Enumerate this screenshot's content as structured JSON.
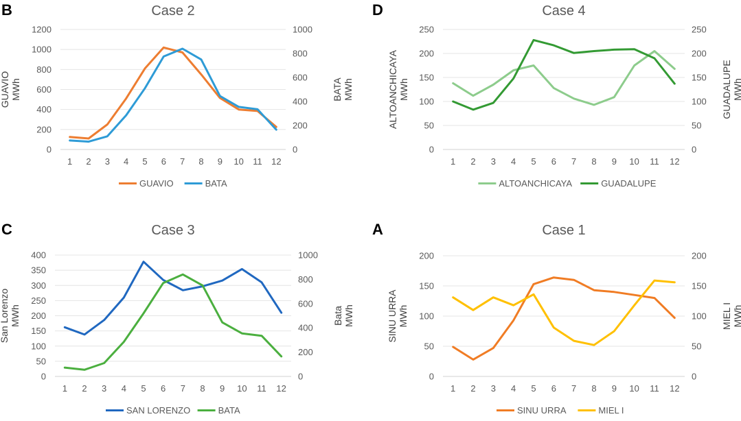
{
  "chart_data": [
    {
      "type": "line",
      "panel_letter": "B",
      "title": "Case 2",
      "categories": [
        "1",
        "2",
        "3",
        "4",
        "5",
        "6",
        "7",
        "8",
        "9",
        "10",
        "11",
        "12"
      ],
      "left_axis": {
        "label_line1": "GUAVIO",
        "label_line2": "MWh",
        "ylim": [
          0,
          1200
        ],
        "ticks": [
          "0",
          "200",
          "400",
          "600",
          "800",
          "1000",
          "1200"
        ]
      },
      "right_axis": {
        "label_line1": "BATA",
        "label_line2": "MWh",
        "ylim": [
          0,
          1000
        ],
        "ticks": [
          "0",
          "200",
          "400",
          "600",
          "800",
          "1000"
        ]
      },
      "series": [
        {
          "name": "GUAVIO",
          "axis": "left",
          "color": "#ED7D31",
          "values": [
            125,
            110,
            250,
            510,
            810,
            1020,
            970,
            750,
            515,
            400,
            385,
            225
          ]
        },
        {
          "name": "BATA",
          "axis": "right",
          "color": "#2E9BD6",
          "values": [
            75,
            65,
            110,
            285,
            510,
            775,
            840,
            750,
            445,
            355,
            335,
            165
          ]
        }
      ]
    },
    {
      "type": "line",
      "panel_letter": "D",
      "title": "Case 4",
      "categories": [
        "1",
        "2",
        "3",
        "4",
        "5",
        "6",
        "7",
        "8",
        "9",
        "10",
        "11",
        "12"
      ],
      "left_axis": {
        "label_line1": "ALTOANCHICAYA",
        "label_line2": "MWh",
        "ylim": [
          0,
          250
        ],
        "ticks": [
          "0",
          "50",
          "100",
          "150",
          "200",
          "250"
        ]
      },
      "right_axis": {
        "label_line1": "GUADALUPE",
        "label_line2": "MWh",
        "ylim": [
          0,
          250
        ],
        "ticks": [
          "0",
          "50",
          "100",
          "150",
          "200",
          "250"
        ]
      },
      "series": [
        {
          "name": "ALTOANCHICAYA",
          "axis": "left",
          "color": "#8DCC8C",
          "values": [
            138,
            112,
            135,
            165,
            175,
            128,
            106,
            93,
            109,
            175,
            205,
            168
          ]
        },
        {
          "name": "GUADALUPE",
          "axis": "right",
          "color": "#339A33",
          "values": [
            100,
            83,
            97,
            148,
            228,
            217,
            201,
            205,
            208,
            209,
            190,
            137
          ]
        }
      ]
    },
    {
      "type": "line",
      "panel_letter": "C",
      "title": "Case 3",
      "categories": [
        "1",
        "2",
        "3",
        "4",
        "5",
        "6",
        "7",
        "8",
        "9",
        "10",
        "11",
        "12"
      ],
      "left_axis": {
        "label_line1": "San Lorenzo",
        "label_line2": "MWh",
        "ylim": [
          0,
          400
        ],
        "ticks": [
          "0",
          "50",
          "100",
          "150",
          "200",
          "250",
          "300",
          "350",
          "400"
        ]
      },
      "right_axis": {
        "label_line1": "Bata",
        "label_line2": "MWh",
        "ylim": [
          0,
          1000
        ],
        "ticks": [
          "0",
          "200",
          "400",
          "600",
          "800",
          "1000"
        ]
      },
      "series": [
        {
          "name": "SAN LORENZO",
          "axis": "left",
          "color": "#2068C0",
          "values": [
            162,
            138,
            186,
            260,
            378,
            318,
            284,
            297,
            316,
            354,
            310,
            210
          ]
        },
        {
          "name": "BATA",
          "axis": "right",
          "color": "#4BAF3F",
          "values": [
            73,
            55,
            110,
            285,
            520,
            770,
            840,
            750,
            445,
            355,
            335,
            165
          ]
        }
      ]
    },
    {
      "type": "line",
      "panel_letter": "A",
      "title": "Case 1",
      "categories": [
        "1",
        "2",
        "3",
        "4",
        "5",
        "6",
        "7",
        "8",
        "9",
        "10",
        "11",
        "12"
      ],
      "left_axis": {
        "label_line1": "SINU URRA",
        "label_line2": "MWh",
        "ylim": [
          0,
          200
        ],
        "ticks": [
          "0",
          "50",
          "100",
          "150",
          "200"
        ]
      },
      "right_axis": {
        "label_line1": "MIEL I",
        "label_line2": "MWh",
        "ylim": [
          0,
          200
        ],
        "ticks": [
          "0",
          "50",
          "100",
          "150",
          "200"
        ]
      },
      "series": [
        {
          "name": "SINU URRA",
          "axis": "left",
          "color": "#F07C24",
          "values": [
            49,
            28,
            47,
            93,
            153,
            164,
            160,
            143,
            140,
            135,
            130,
            97
          ]
        },
        {
          "name": "MIEL I",
          "axis": "right",
          "color": "#FFC000",
          "values": [
            131,
            110,
            131,
            118,
            136,
            81,
            59,
            52,
            75,
            118,
            159,
            156
          ]
        }
      ]
    }
  ]
}
